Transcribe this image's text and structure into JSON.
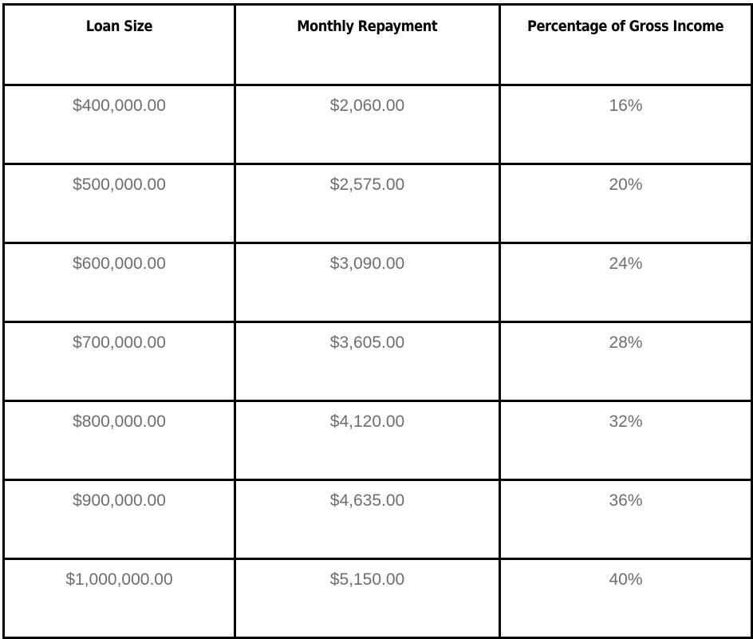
{
  "table": {
    "headers": [
      "Loan Size",
      "Monthly Repayment",
      "Percentage of Gross Income"
    ],
    "rows": [
      [
        "$400,000.00",
        "$2,060.00",
        "16%"
      ],
      [
        "$500,000.00",
        "$2,575.00",
        "20%"
      ],
      [
        "$600,000.00",
        "$3,090.00",
        "24%"
      ],
      [
        "$700,000.00",
        "$3,605.00",
        "28%"
      ],
      [
        "$800,000.00",
        "$4,120.00",
        "32%"
      ],
      [
        "$900,000.00",
        "$4,635.00",
        "36%"
      ],
      [
        "$1,000,000.00",
        "$5,150.00",
        "40%"
      ]
    ]
  },
  "colors": {
    "border": "#000000",
    "header_text": "#000000",
    "cell_text": "#6e6e6e",
    "background": "#ffffff"
  }
}
